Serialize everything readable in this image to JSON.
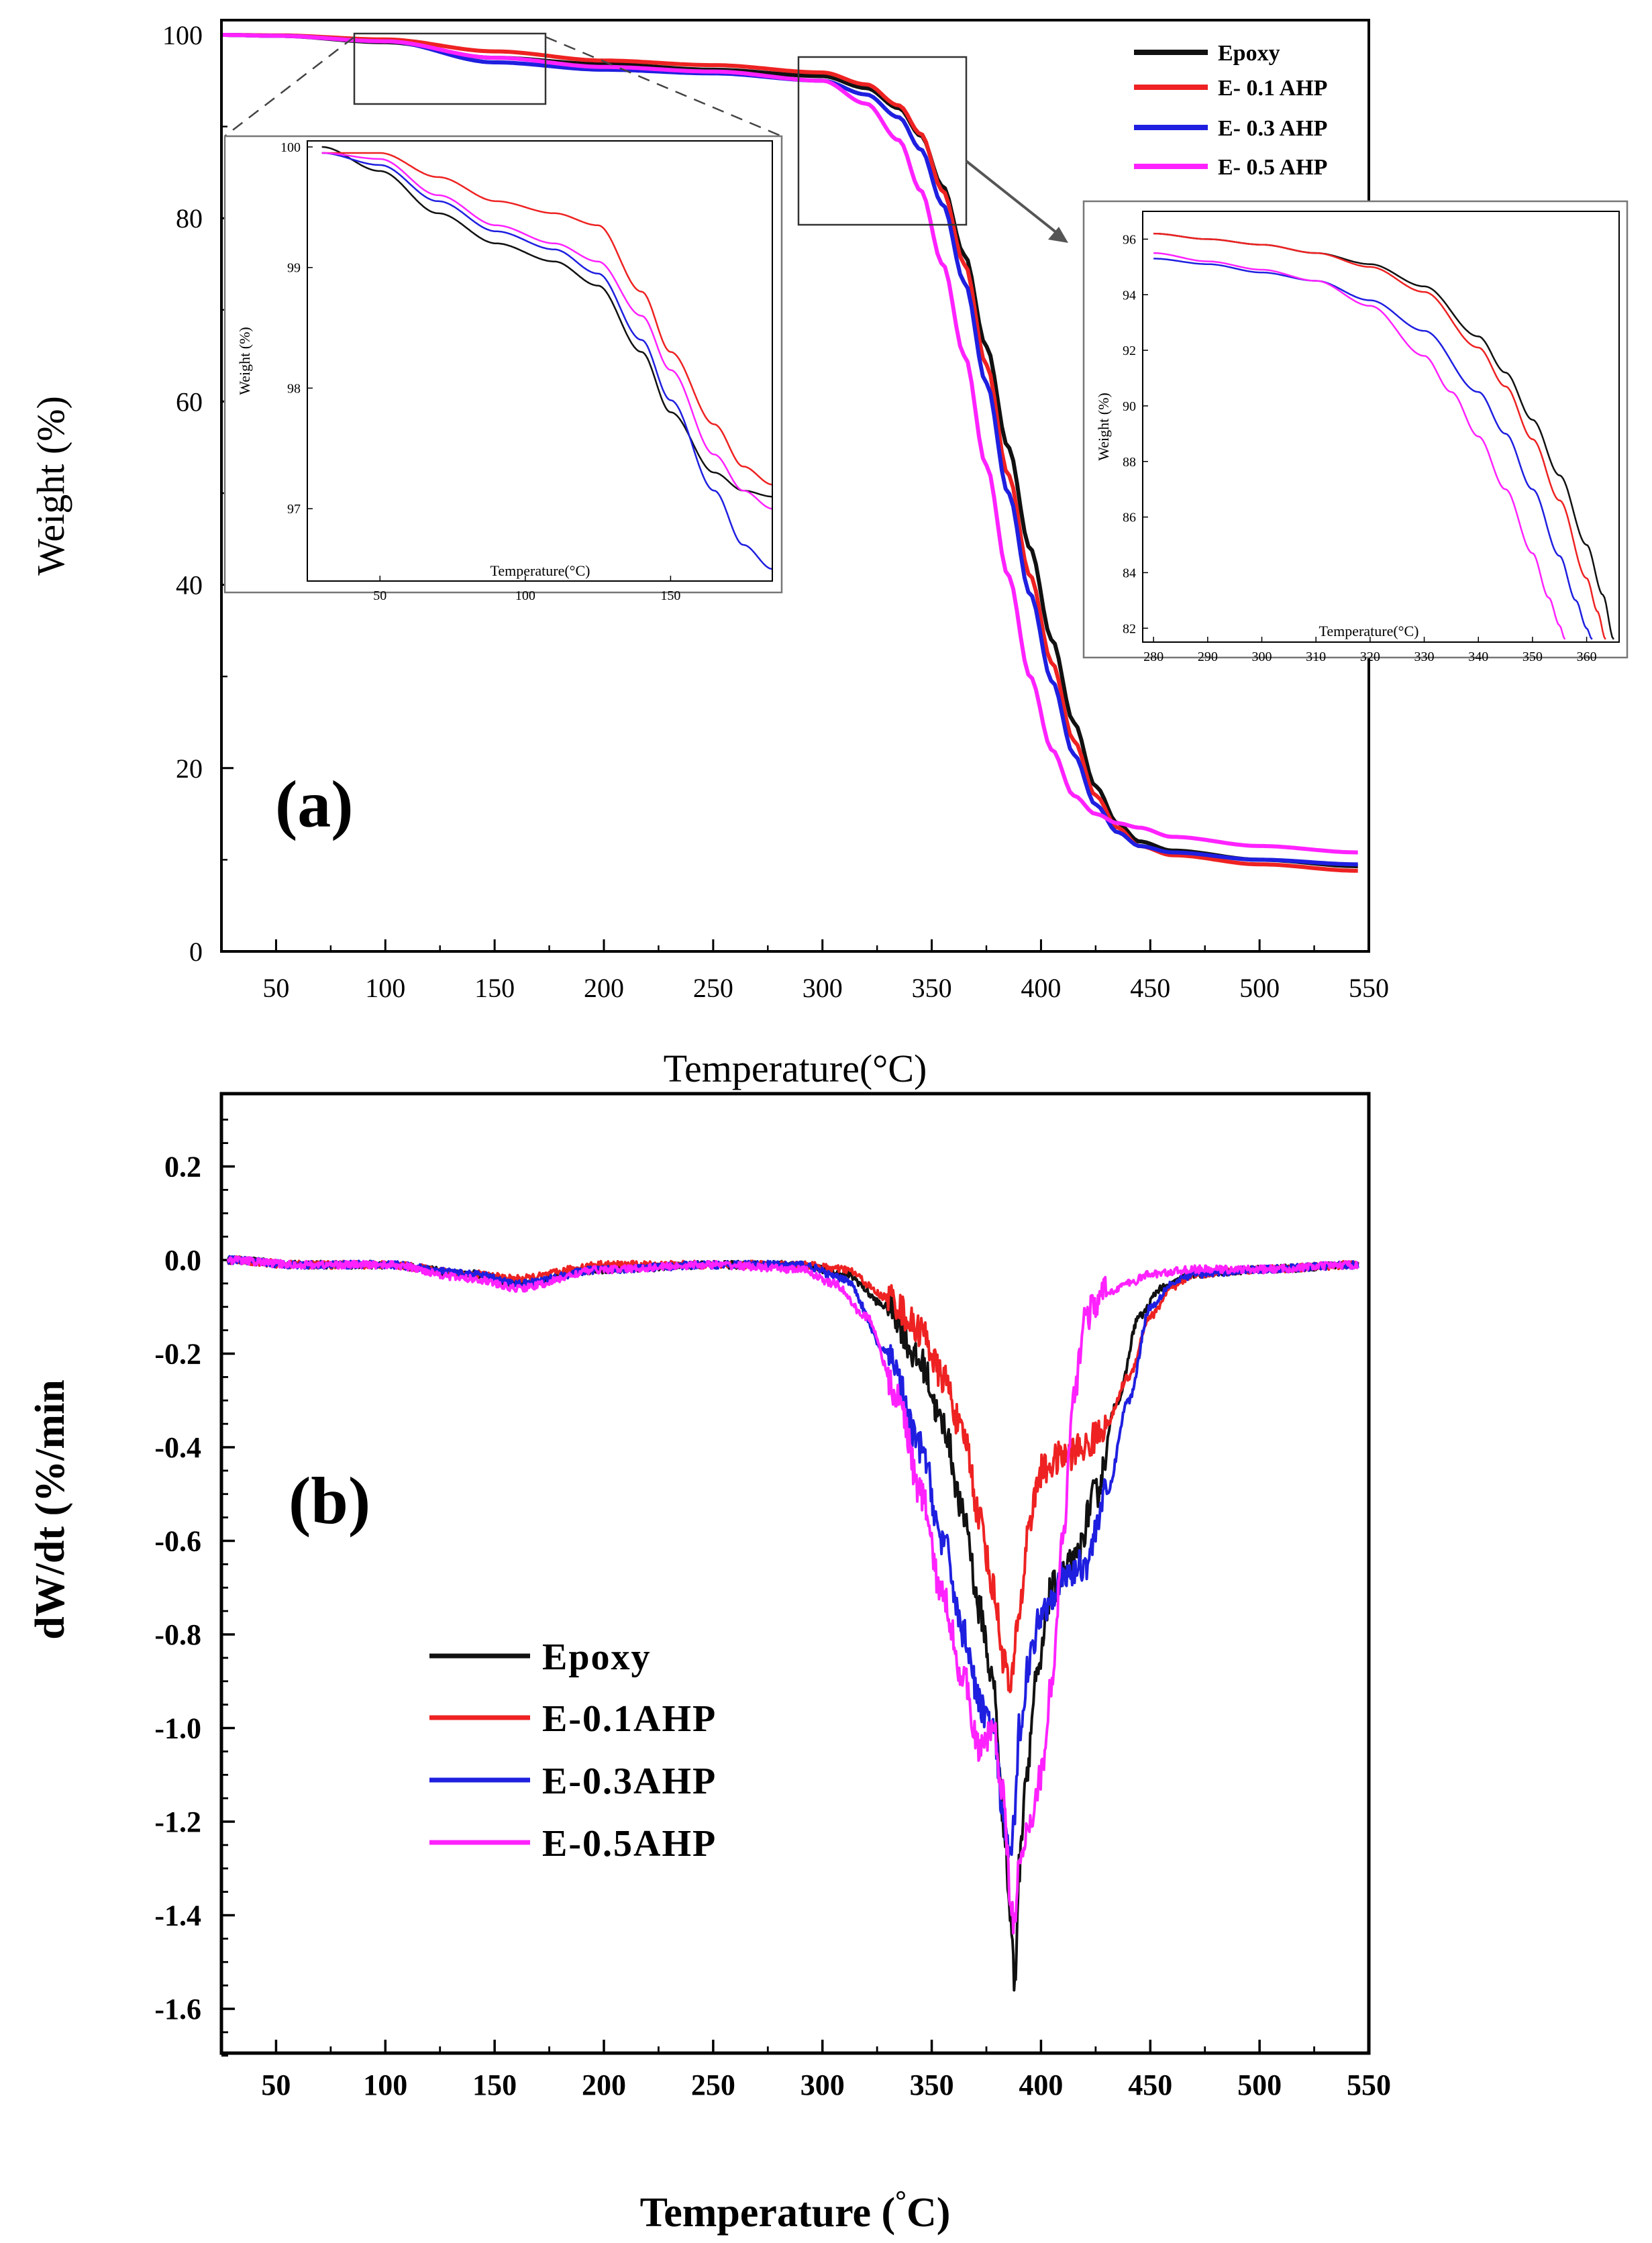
{
  "colors": {
    "Epoxy": "#111111",
    "E-0.1AHP": "#ee2222",
    "E-0.3AHP": "#1f1fe0",
    "E-0.5AHP": "#ff22ff"
  },
  "chart_data": [
    {
      "id": "a",
      "type": "line",
      "panel_label": "(a)",
      "title": "",
      "xlabel": "Temperature(°C)",
      "ylabel": "Weight (%)",
      "xlim": [
        25,
        550
      ],
      "ylim": [
        0,
        100
      ],
      "xticks": [
        50,
        100,
        150,
        200,
        250,
        300,
        350,
        400,
        450,
        500,
        550
      ],
      "yticks": [
        0,
        20,
        40,
        60,
        80,
        100
      ],
      "legend_position": "top-right",
      "legend": [
        "Epoxy",
        "E- 0.1 AHP",
        "E- 0.3 AHP",
        "E- 0.5 AHP"
      ],
      "series": [
        {
          "name": "Epoxy",
          "x": [
            25,
            50,
            100,
            150,
            200,
            250,
            300,
            320,
            335,
            345,
            355,
            365,
            375,
            385,
            395,
            405,
            415,
            425,
            435,
            445,
            460,
            500,
            545
          ],
          "y": [
            100,
            99.9,
            99.2,
            97.5,
            96.8,
            96.2,
            95.5,
            94.2,
            92.0,
            89.0,
            83.5,
            76.0,
            66.0,
            55.0,
            44.0,
            34.0,
            25.0,
            18.0,
            14.0,
            12.0,
            11.0,
            10.0,
            9.3
          ]
        },
        {
          "name": "E- 0.1 AHP",
          "x": [
            25,
            50,
            100,
            150,
            200,
            250,
            300,
            320,
            335,
            345,
            355,
            365,
            375,
            385,
            395,
            405,
            415,
            425,
            435,
            445,
            460,
            500,
            545
          ],
          "y": [
            100,
            99.95,
            99.5,
            98.2,
            97.2,
            96.7,
            95.9,
            94.6,
            92.3,
            89.2,
            83.0,
            75.0,
            64.0,
            52.0,
            41.0,
            31.5,
            23.0,
            17.0,
            13.5,
            11.5,
            10.5,
            9.5,
            8.8
          ]
        },
        {
          "name": "E- 0.3 AHP",
          "x": [
            25,
            50,
            100,
            150,
            200,
            250,
            300,
            320,
            335,
            345,
            355,
            365,
            375,
            385,
            395,
            405,
            415,
            425,
            435,
            445,
            460,
            500,
            545
          ],
          "y": [
            100,
            99.9,
            99.3,
            97.0,
            96.2,
            95.8,
            95.0,
            93.5,
            91.0,
            87.5,
            81.5,
            73.0,
            62.0,
            50.0,
            39.0,
            29.5,
            21.5,
            16.0,
            13.0,
            11.5,
            10.8,
            10.0,
            9.5
          ]
        },
        {
          "name": "E- 0.5 AHP",
          "x": [
            25,
            50,
            100,
            150,
            200,
            250,
            300,
            320,
            335,
            345,
            355,
            365,
            375,
            385,
            395,
            405,
            415,
            425,
            435,
            445,
            460,
            500,
            545
          ],
          "y": [
            100,
            99.9,
            99.3,
            97.5,
            96.5,
            96.0,
            95.0,
            92.5,
            88.5,
            83.0,
            75.0,
            65.0,
            53.0,
            41.0,
            30.0,
            22.0,
            17.0,
            15.0,
            14.0,
            13.5,
            12.5,
            11.5,
            10.8
          ]
        }
      ],
      "insets": [
        {
          "id": "a-inset-1",
          "xlabel": "Temperature(°C)",
          "ylabel": "Weight (%)",
          "xlim": [
            25,
            185
          ],
          "ylim": [
            96.4,
            100.05
          ],
          "xticks": [
            50,
            100,
            150
          ],
          "yticks": [
            97,
            98,
            99,
            100
          ],
          "series": [
            {
              "name": "Epoxy",
              "x": [
                30,
                50,
                70,
                90,
                110,
                125,
                140,
                150,
                165,
                175,
                185
              ],
              "y": [
                100,
                99.8,
                99.45,
                99.2,
                99.05,
                98.85,
                98.3,
                97.8,
                97.3,
                97.15,
                97.1
              ]
            },
            {
              "name": "E- 0.1 AHP",
              "x": [
                30,
                50,
                70,
                90,
                110,
                125,
                140,
                150,
                165,
                175,
                185
              ],
              "y": [
                99.95,
                99.95,
                99.75,
                99.55,
                99.45,
                99.35,
                98.8,
                98.3,
                97.7,
                97.35,
                97.2
              ]
            },
            {
              "name": "E- 0.3 AHP",
              "x": [
                30,
                50,
                70,
                90,
                110,
                125,
                140,
                150,
                165,
                175,
                185
              ],
              "y": [
                99.95,
                99.85,
                99.55,
                99.3,
                99.15,
                98.95,
                98.4,
                97.9,
                97.15,
                96.7,
                96.5
              ]
            },
            {
              "name": "E- 0.5 AHP",
              "x": [
                30,
                50,
                70,
                90,
                110,
                125,
                140,
                150,
                165,
                175,
                185
              ],
              "y": [
                99.95,
                99.9,
                99.6,
                99.35,
                99.2,
                99.05,
                98.6,
                98.15,
                97.45,
                97.15,
                97.0
              ]
            }
          ]
        },
        {
          "id": "a-inset-2",
          "xlabel": "Temperature(°C)",
          "ylabel": "Weight (%)",
          "xlim": [
            278,
            366
          ],
          "ylim": [
            81.5,
            97
          ],
          "xticks": [
            280,
            290,
            300,
            310,
            320,
            330,
            340,
            350,
            360
          ],
          "yticks": [
            82,
            84,
            86,
            88,
            90,
            92,
            94,
            96
          ],
          "series": [
            {
              "name": "Epoxy",
              "x": [
                280,
                290,
                300,
                310,
                320,
                330,
                340,
                345,
                350,
                355,
                360,
                363,
                365
              ],
              "y": [
                96.2,
                96.0,
                95.8,
                95.5,
                95.1,
                94.3,
                92.5,
                91.2,
                89.5,
                87.5,
                85.0,
                83.2,
                81.6
              ]
            },
            {
              "name": "E- 0.1 AHP",
              "x": [
                280,
                290,
                300,
                310,
                320,
                330,
                340,
                345,
                350,
                355,
                360,
                362,
                363.5
              ],
              "y": [
                96.2,
                96.0,
                95.8,
                95.5,
                95.0,
                94.1,
                92.1,
                90.7,
                88.8,
                86.6,
                83.8,
                82.6,
                81.6
              ]
            },
            {
              "name": "E- 0.3 AHP",
              "x": [
                280,
                290,
                300,
                310,
                320,
                330,
                340,
                345,
                350,
                355,
                358,
                360,
                361
              ],
              "y": [
                95.3,
                95.1,
                94.8,
                94.5,
                93.8,
                92.7,
                90.5,
                89.0,
                87.0,
                84.6,
                83.0,
                82.0,
                81.6
              ]
            },
            {
              "name": "E- 0.5 AHP",
              "x": [
                280,
                290,
                300,
                310,
                320,
                330,
                335,
                340,
                345,
                350,
                353,
                355,
                356
              ],
              "y": [
                95.5,
                95.2,
                94.9,
                94.5,
                93.6,
                91.8,
                90.5,
                88.9,
                87.0,
                84.7,
                83.1,
                82.1,
                81.6
              ]
            }
          ]
        }
      ]
    },
    {
      "id": "b",
      "type": "line",
      "panel_label": "(b)",
      "title": "",
      "xlabel": "Temperature (°C)",
      "xlabel_main": "Temperature (",
      "xlabel_degree": "°",
      "xlabel_end": "C)",
      "ylabel": "dW/dt (%/min",
      "xlim": [
        25,
        550
      ],
      "ylim": [
        -1.7,
        0.3
      ],
      "xticks": [
        50,
        100,
        150,
        200,
        250,
        300,
        350,
        400,
        450,
        500,
        550
      ],
      "yticks": [
        0.2,
        0.0,
        -0.2,
        -0.4,
        -0.6,
        -0.8,
        -1.0,
        -1.2,
        -1.4,
        -1.6
      ],
      "ytick_labels": [
        "0.2",
        "0.0",
        "-0.2",
        "-0.4",
        "-0.6",
        "-0.8",
        "-1.0",
        "-1.2",
        "-1.4",
        "-1.6"
      ],
      "legend_position": "center-left",
      "legend": [
        "Epoxy",
        "E-0.1AHP",
        "E-0.3AHP",
        "E-0.5AHP"
      ],
      "series": [
        {
          "name": "Epoxy",
          "x": [
            28,
            60,
            100,
            140,
            160,
            200,
            250,
            290,
            310,
            330,
            345,
            355,
            365,
            372,
            378,
            383,
            386,
            388,
            390,
            393,
            398,
            405,
            415,
            425,
            435,
            445,
            455,
            470,
            500,
            545
          ],
          "y": [
            0,
            -0.01,
            -0.01,
            -0.03,
            -0.05,
            -0.02,
            -0.01,
            -0.01,
            -0.03,
            -0.1,
            -0.22,
            -0.35,
            -0.55,
            -0.75,
            -0.9,
            -1.2,
            -1.4,
            -1.55,
            -1.3,
            -1.1,
            -0.9,
            -0.7,
            -0.65,
            -0.5,
            -0.3,
            -0.12,
            -0.06,
            -0.03,
            -0.02,
            -0.01
          ]
        },
        {
          "name": "E-0.1AHP",
          "x": [
            28,
            60,
            100,
            140,
            160,
            200,
            250,
            290,
            310,
            330,
            345,
            355,
            365,
            372,
            378,
            383,
            386,
            390,
            395,
            400,
            410,
            420,
            430,
            440,
            450,
            460,
            470,
            500,
            545
          ],
          "y": [
            0,
            -0.01,
            -0.01,
            -0.03,
            -0.04,
            -0.01,
            -0.01,
            -0.01,
            -0.02,
            -0.08,
            -0.15,
            -0.25,
            -0.38,
            -0.55,
            -0.7,
            -0.85,
            -0.92,
            -0.75,
            -0.55,
            -0.45,
            -0.42,
            -0.4,
            -0.35,
            -0.25,
            -0.12,
            -0.06,
            -0.03,
            -0.02,
            -0.01
          ]
        },
        {
          "name": "E-0.3AHP",
          "x": [
            28,
            60,
            100,
            140,
            160,
            200,
            250,
            290,
            310,
            330,
            345,
            355,
            365,
            372,
            378,
            383,
            386,
            388,
            390,
            395,
            400,
            410,
            420,
            430,
            440,
            450,
            460,
            470,
            500,
            545
          ],
          "y": [
            0,
            -0.01,
            -0.01,
            -0.03,
            -0.05,
            -0.02,
            -0.01,
            -0.01,
            -0.04,
            -0.2,
            -0.4,
            -0.6,
            -0.8,
            -0.95,
            -1.0,
            -1.2,
            -1.27,
            -1.2,
            -1.0,
            -0.85,
            -0.75,
            -0.68,
            -0.65,
            -0.5,
            -0.3,
            -0.1,
            -0.05,
            -0.03,
            -0.02,
            -0.01
          ]
        },
        {
          "name": "E-0.5AHP",
          "x": [
            28,
            60,
            100,
            140,
            160,
            200,
            250,
            290,
            305,
            320,
            335,
            345,
            355,
            365,
            372,
            378,
            383,
            386,
            388,
            390,
            395,
            400,
            405,
            410,
            415,
            420,
            430,
            440,
            450,
            470,
            500,
            545
          ],
          "y": [
            0,
            -0.01,
            -0.01,
            -0.04,
            -0.06,
            -0.02,
            -0.01,
            -0.02,
            -0.05,
            -0.12,
            -0.3,
            -0.5,
            -0.72,
            -0.9,
            -1.05,
            -1.0,
            -1.15,
            -1.35,
            -1.43,
            -1.3,
            -1.2,
            -1.1,
            -0.9,
            -0.6,
            -0.3,
            -0.12,
            -0.07,
            -0.05,
            -0.03,
            -0.02,
            -0.02,
            -0.01
          ]
        }
      ]
    }
  ]
}
